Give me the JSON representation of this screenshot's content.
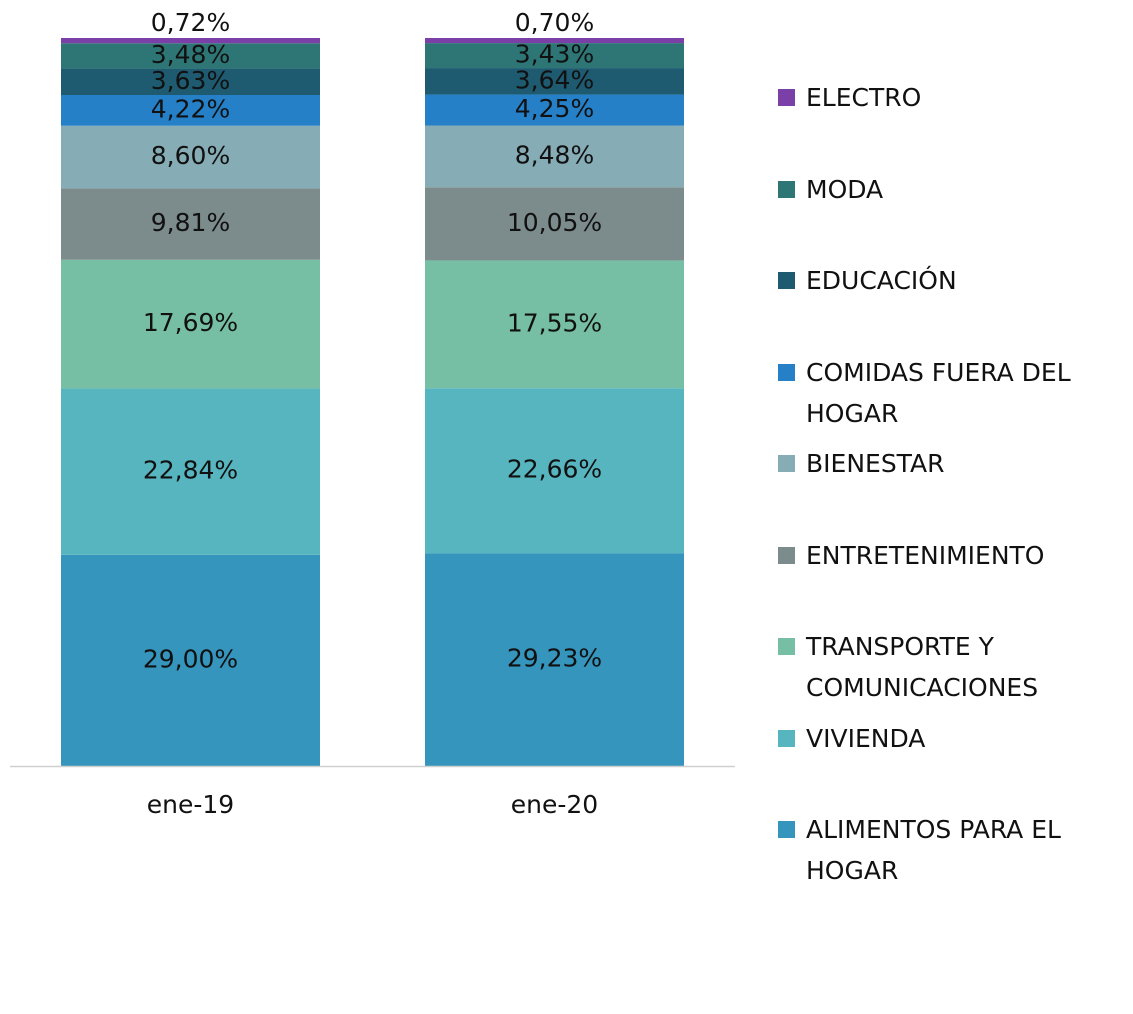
{
  "chart_data": {
    "type": "stacked-bar",
    "categories": [
      "ene-19",
      "ene-20"
    ],
    "series": [
      {
        "name": "ALIMENTOS PARA EL HOGAR",
        "color": "#3595bd",
        "values": [
          29.0,
          29.23
        ],
        "value_labels": [
          "29,00%",
          "29,23%"
        ]
      },
      {
        "name": "VIVIENDA",
        "color": "#57b5c0",
        "values": [
          22.84,
          22.66
        ],
        "value_labels": [
          "22,84%",
          "22,66%"
        ]
      },
      {
        "name": "TRANSPORTE Y COMUNICACIONES",
        "color": "#76bfa5",
        "values": [
          17.69,
          17.55
        ],
        "value_labels": [
          "17,69%",
          "17,55%"
        ]
      },
      {
        "name": "ENTRETENIMIENTO",
        "color": "#7c8b8c",
        "values": [
          9.81,
          10.05
        ],
        "value_labels": [
          "9,81%",
          "10,05%"
        ]
      },
      {
        "name": "BIENESTAR",
        "color": "#86acb5",
        "values": [
          8.6,
          8.48
        ],
        "value_labels": [
          "8,60%",
          "8,48%"
        ]
      },
      {
        "name": "COMIDAS FUERA DEL HOGAR",
        "color": "#2580c8",
        "values": [
          4.22,
          4.25
        ],
        "value_labels": [
          "4,22%",
          "4,25%"
        ]
      },
      {
        "name": "EDUCACIÓN",
        "color": "#1e5a70",
        "values": [
          3.63,
          3.64
        ],
        "value_labels": [
          "3,63%",
          "3,64%"
        ]
      },
      {
        "name": "MODA",
        "color": "#2e7675",
        "values": [
          3.48,
          3.43
        ],
        "value_labels": [
          "3,48%",
          "3,43%"
        ]
      },
      {
        "name": "ELECTRO",
        "color": "#7b3fa8",
        "values": [
          0.72,
          0.7
        ],
        "value_labels": [
          "0,72%",
          "0,70%"
        ]
      }
    ],
    "legend": "right"
  }
}
